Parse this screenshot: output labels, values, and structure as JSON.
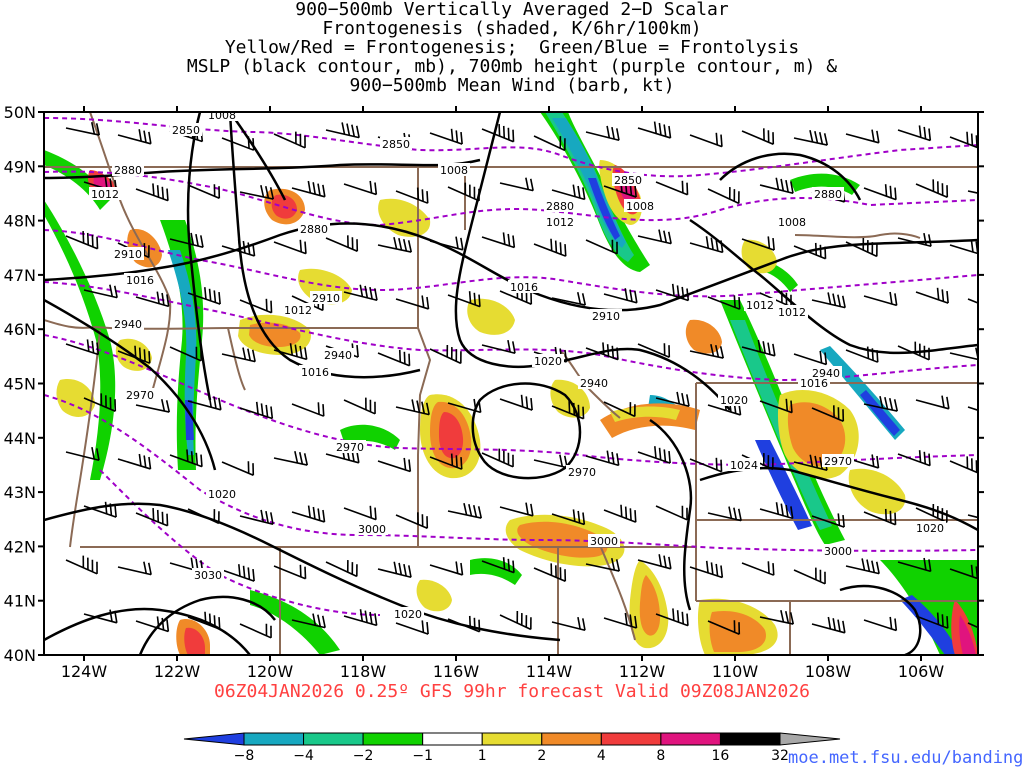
{
  "title_lines": [
    "900−500mb Vertically Averaged 2−D Scalar",
    "Frontogenesis (shaded, K/6hr/100km)",
    "Yellow/Red = Frontogenesis;  Green/Blue = Frontolysis",
    "MSLP (black contour, mb), 700mb height (purple contour, m) &",
    "900−500mb Mean Wind (barb, kt)"
  ],
  "lat_labels": [
    "50N",
    "49N",
    "48N",
    "47N",
    "46N",
    "45N",
    "44N",
    "43N",
    "42N",
    "41N",
    "40N"
  ],
  "lon_labels": [
    "124W",
    "122W",
    "120W",
    "118W",
    "116W",
    "114W",
    "112W",
    "110W",
    "108W",
    "106W"
  ],
  "valid_text": "06Z04JAN2026 0.25º GFS 99hr forecast Valid 09Z08JAN2026",
  "credit": "moe.met.fsu.edu/banding",
  "colorbar": {
    "labels": [
      "−8",
      "−4",
      "−2",
      "−1",
      "1",
      "2",
      "4",
      "8",
      "16",
      "32"
    ],
    "colors": [
      "#1f3fe0",
      "#17a8c0",
      "#19c88a",
      "#10d200",
      "#ffffff",
      "#e6dc32",
      "#f08a28",
      "#f03c3c",
      "#e0147e",
      "#000000",
      "#a8a8a8"
    ]
  },
  "mslp_labels": [
    "1008",
    "1008",
    "1008",
    "1008",
    "1012",
    "1012",
    "1012",
    "1012",
    "1016",
    "1016",
    "1016",
    "1016",
    "1020",
    "1020",
    "1020",
    "1020",
    "1020",
    "1024",
    "1012"
  ],
  "height_labels": [
    "2850",
    "2850",
    "2850",
    "2880",
    "2880",
    "2880",
    "2880",
    "2910",
    "2910",
    "2910",
    "2940",
    "2940",
    "2940",
    "2940",
    "2970",
    "2970",
    "2970",
    "2970",
    "3000",
    "3000",
    "3000",
    "3030"
  ],
  "colors": {
    "mslp": "#000000",
    "height": "#a000c8",
    "border": "#8b6a55",
    "valid": "#ff4040",
    "credit": "#4466ff"
  }
}
